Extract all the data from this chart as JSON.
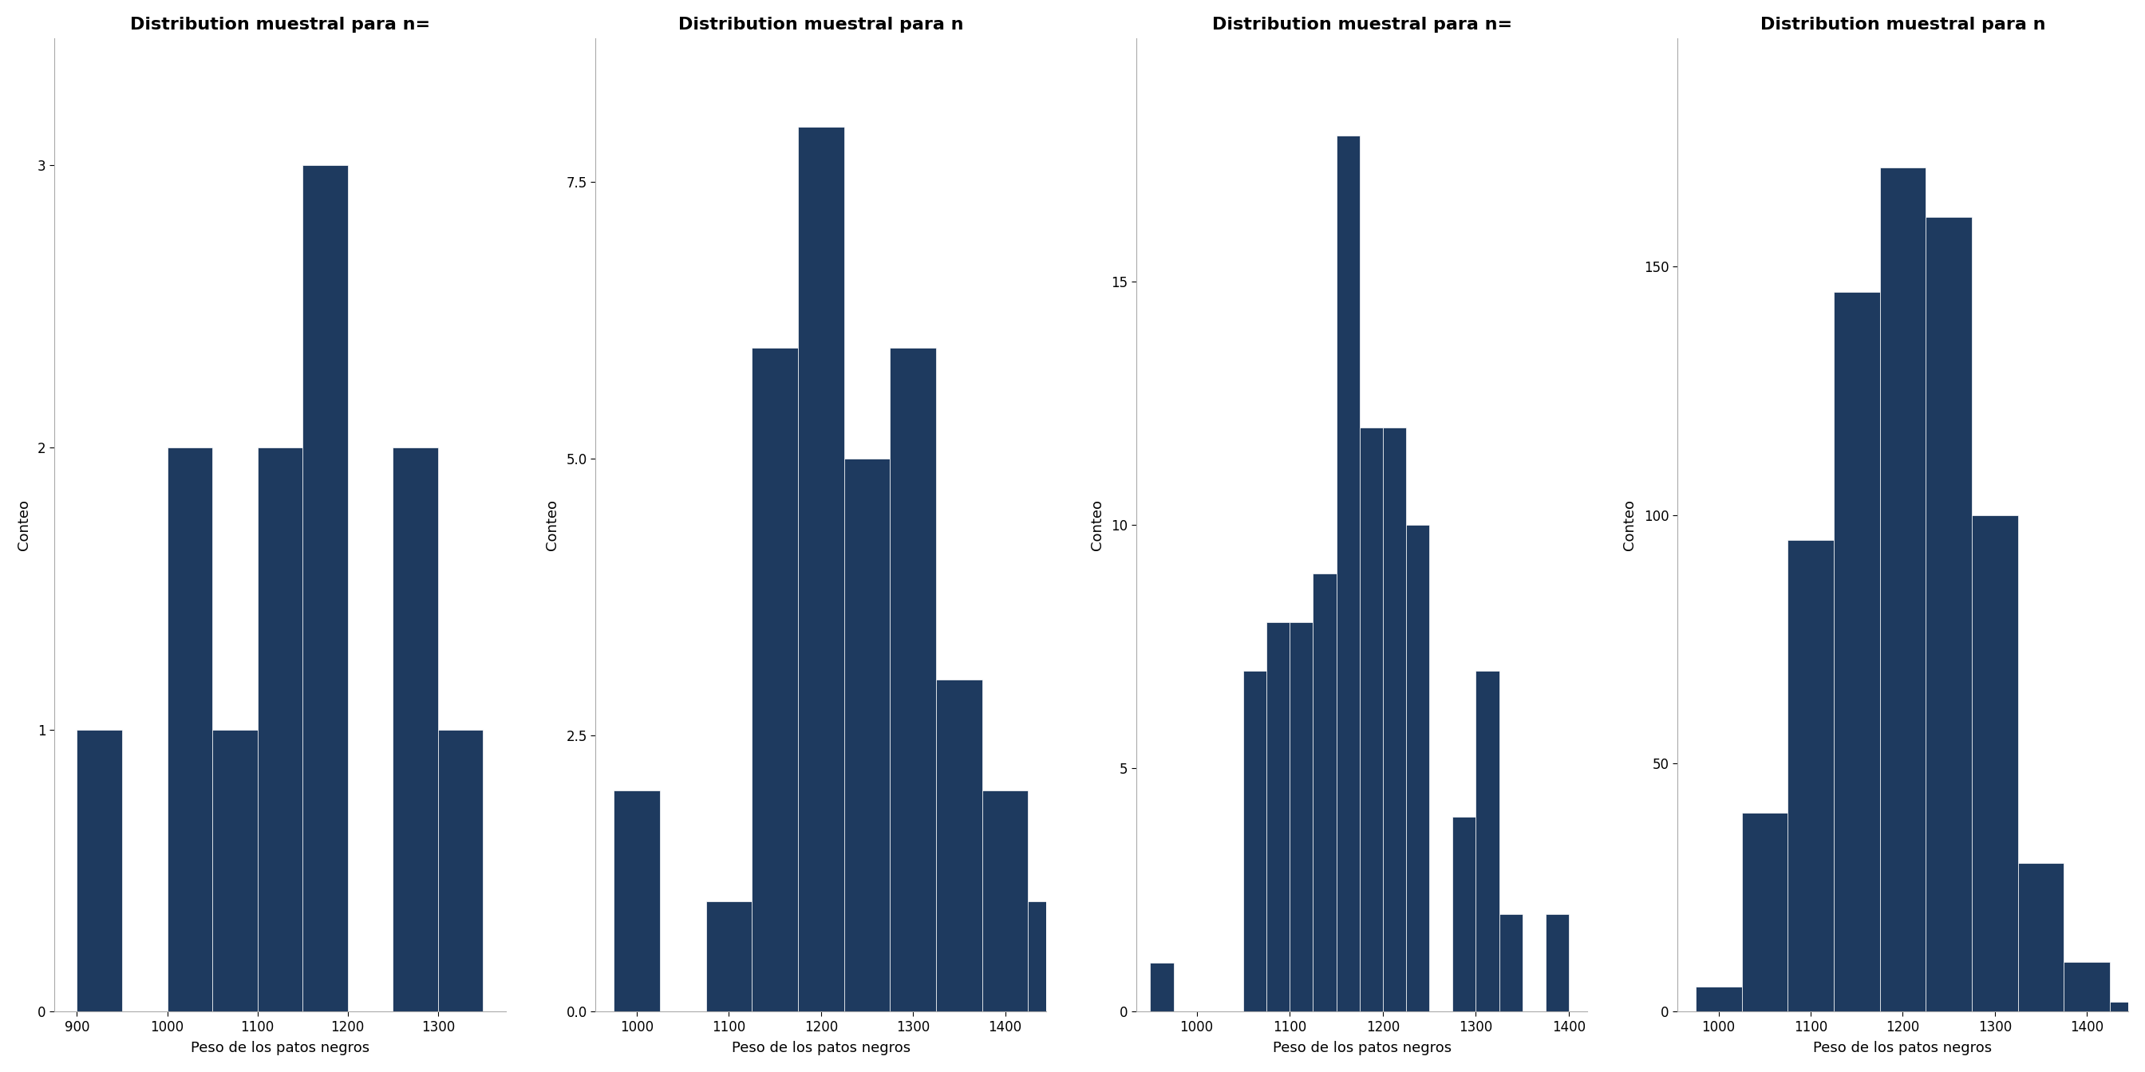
{
  "bar_color": "#1e3a5f",
  "background_color": "#ffffff",
  "xlabel": "Peso de los patos negros",
  "ylabel": "Conteo",
  "plots": [
    {
      "title": "Distribution muestral para n=",
      "bin_edges": [
        900,
        950,
        1000,
        1050,
        1100,
        1150,
        1200,
        1250,
        1300,
        1350
      ],
      "counts": [
        1,
        0,
        2,
        1,
        2,
        3,
        0,
        2,
        1,
        0
      ],
      "xlim": [
        875,
        1375
      ],
      "xticks": [
        900,
        1000,
        1100,
        1200,
        1300
      ],
      "yticks": [
        0,
        1,
        2,
        3
      ],
      "ylim": [
        0,
        3.45
      ]
    },
    {
      "title": "Distribution muestral para n",
      "bin_edges": [
        975,
        1025,
        1075,
        1125,
        1175,
        1225,
        1275,
        1325,
        1375,
        1425
      ],
      "counts": [
        2.0,
        0.0,
        1.0,
        6.0,
        8.0,
        5.0,
        6.0,
        3.0,
        2.0,
        1.0
      ],
      "xlim": [
        955,
        1445
      ],
      "xticks": [
        1000,
        1100,
        1200,
        1300,
        1400
      ],
      "yticks": [
        0.0,
        2.5,
        5.0,
        7.5
      ],
      "ylim": [
        0,
        8.8
      ]
    },
    {
      "title": "Distribution muestral para n=",
      "bin_edges": [
        950,
        975,
        1000,
        1025,
        1050,
        1075,
        1100,
        1125,
        1150,
        1175,
        1200,
        1225,
        1250,
        1275,
        1300,
        1325,
        1350,
        1375,
        1400
      ],
      "counts": [
        1,
        0,
        0,
        0,
        7,
        8,
        8,
        9,
        18,
        12,
        12,
        10,
        0,
        4,
        7,
        2,
        0,
        2,
        0
      ],
      "xlim": [
        935,
        1420
      ],
      "xticks": [
        1000,
        1100,
        1200,
        1300,
        1400
      ],
      "yticks": [
        0,
        5,
        10,
        15
      ],
      "ylim": [
        0,
        20
      ]
    },
    {
      "title": "Distribution muestral para n",
      "bin_edges": [
        975,
        1025,
        1075,
        1125,
        1175,
        1225,
        1275,
        1325,
        1375,
        1425
      ],
      "counts": [
        5,
        40,
        95,
        145,
        170,
        160,
        100,
        30,
        10,
        2
      ],
      "xlim": [
        955,
        1445
      ],
      "xticks": [
        1000,
        1100,
        1200,
        1300,
        1400
      ],
      "yticks": [
        0,
        50,
        100,
        150
      ],
      "ylim": [
        0,
        196
      ]
    }
  ]
}
